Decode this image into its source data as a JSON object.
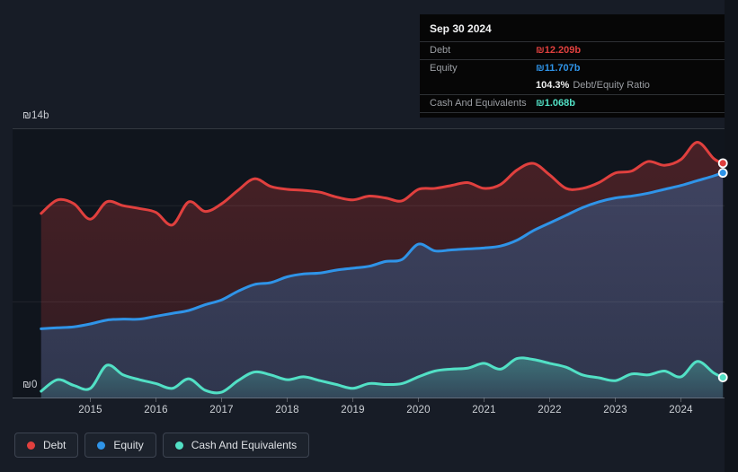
{
  "colors": {
    "debt": "#e0403e",
    "equity": "#2f94e8",
    "cash": "#52e0c5",
    "page_background": "#171c26",
    "plot_background": "#10151d",
    "tooltip_background": "#060606"
  },
  "tooltip": {
    "date": "Sep 30 2024",
    "debt_label": "Debt",
    "debt_value": "₪12.209b",
    "equity_label": "Equity",
    "equity_value": "₪11.707b",
    "ratio_value": "104.3%",
    "ratio_label": "Debt/Equity Ratio",
    "cash_label": "Cash And Equivalents",
    "cash_value": "₪1.068b"
  },
  "legend": {
    "items": [
      {
        "label": "Debt",
        "color": "#e0403e"
      },
      {
        "label": "Equity",
        "color": "#2f94e8"
      },
      {
        "label": "Cash And Equivalents",
        "color": "#52e0c5"
      }
    ]
  },
  "chart_data": {
    "type": "area",
    "title": "",
    "xlabel": "",
    "ylabel": "₪ billions",
    "ylim": [
      0,
      14
    ],
    "x_range": [
      2014.25,
      2024.64
    ],
    "grid": true,
    "gridline_values": [
      14,
      10,
      5,
      0
    ],
    "y_axis_labels": [
      "₪14b",
      "₪0"
    ],
    "x_tick_labels": [
      "2015",
      "2016",
      "2017",
      "2018",
      "2019",
      "2020",
      "2021",
      "2022",
      "2023",
      "2024"
    ],
    "legend_position": "bottom-left",
    "end_date_label": "Sep 30 2024",
    "x": [
      2014.25,
      2014.5,
      2014.75,
      2015.0,
      2015.25,
      2015.5,
      2015.75,
      2016.0,
      2016.25,
      2016.5,
      2016.75,
      2017.0,
      2017.25,
      2017.5,
      2017.75,
      2018.0,
      2018.25,
      2018.5,
      2018.75,
      2019.0,
      2019.25,
      2019.5,
      2019.75,
      2020.0,
      2020.25,
      2020.5,
      2020.75,
      2021.0,
      2021.25,
      2021.5,
      2021.75,
      2022.0,
      2022.25,
      2022.5,
      2022.75,
      2023.0,
      2023.25,
      2023.5,
      2023.75,
      2024.0,
      2024.25,
      2024.5,
      2024.64
    ],
    "series": [
      {
        "name": "Debt",
        "color": "#e0403e",
        "values": [
          9.6,
          10.3,
          10.1,
          9.3,
          10.2,
          10.0,
          9.85,
          9.65,
          9.0,
          10.2,
          9.7,
          10.1,
          10.8,
          11.4,
          11.0,
          10.85,
          10.8,
          10.7,
          10.45,
          10.3,
          10.5,
          10.4,
          10.25,
          10.85,
          10.9,
          11.05,
          11.2,
          10.9,
          11.1,
          11.85,
          12.2,
          11.6,
          10.9,
          10.9,
          11.2,
          11.7,
          11.8,
          12.3,
          12.1,
          12.4,
          13.3,
          12.45,
          12.209
        ]
      },
      {
        "name": "Equity",
        "color": "#2f94e8",
        "values": [
          3.6,
          3.65,
          3.7,
          3.85,
          4.05,
          4.1,
          4.1,
          4.25,
          4.4,
          4.55,
          4.85,
          5.1,
          5.55,
          5.9,
          6.0,
          6.3,
          6.45,
          6.5,
          6.65,
          6.75,
          6.85,
          7.1,
          7.2,
          8.0,
          7.65,
          7.7,
          7.75,
          7.8,
          7.9,
          8.2,
          8.7,
          9.1,
          9.5,
          9.9,
          10.2,
          10.4,
          10.5,
          10.65,
          10.85,
          11.05,
          11.3,
          11.55,
          11.707
        ]
      },
      {
        "name": "Cash And Equivalents",
        "color": "#52e0c5",
        "values": [
          0.35,
          0.95,
          0.65,
          0.5,
          1.7,
          1.2,
          0.95,
          0.75,
          0.5,
          1.0,
          0.4,
          0.3,
          0.9,
          1.35,
          1.2,
          0.95,
          1.1,
          0.9,
          0.7,
          0.5,
          0.75,
          0.7,
          0.75,
          1.1,
          1.4,
          1.5,
          1.55,
          1.8,
          1.5,
          2.05,
          2.0,
          1.8,
          1.6,
          1.2,
          1.05,
          0.9,
          1.25,
          1.2,
          1.4,
          1.1,
          1.9,
          1.3,
          1.068
        ]
      }
    ]
  }
}
